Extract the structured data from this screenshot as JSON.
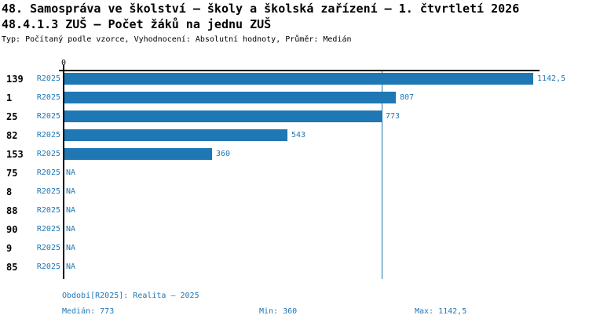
{
  "header": {
    "title_line1": "48. Samospráva ve školství – školy a školská zařízení – 1. čtvrtletí 2026",
    "title_line2": "48.4.1.3 ZUŠ – Počet žáků na jednu ZUŠ",
    "subtitle": "Typ: Počítaný podle vzorce, Vyhodnocení: Absolutní hodnoty, Průměr: Medián"
  },
  "chart_data": {
    "type": "bar",
    "orientation": "horizontal",
    "title": "48.4.1.3 ZUŠ – Počet žáků na jednu ZUŠ",
    "axis_zero_label": "0",
    "series_label": "R2025",
    "categories": [
      "139",
      "1",
      "25",
      "82",
      "153",
      "75",
      "8",
      "88",
      "90",
      "9",
      "85"
    ],
    "values": [
      1142.5,
      807,
      773,
      543,
      360,
      null,
      null,
      null,
      null,
      null,
      null
    ],
    "value_labels": [
      "1142,5",
      "807",
      "773",
      "543",
      "360",
      "NA",
      "NA",
      "NA",
      "NA",
      "NA",
      "NA"
    ],
    "xlim": [
      0,
      1142.5
    ],
    "reference_line_value": 773,
    "bar_color": "#1f77b4",
    "grid": false,
    "legend_position": "none"
  },
  "footer": {
    "period_label": "Období[R2025]: Realita – 2025",
    "median_label": "Medián: 773",
    "min_label": "Min: 360",
    "max_label": "Max: 1142,5"
  },
  "colors": {
    "bar": "#1f77b4",
    "accent_text": "#1f77b4",
    "axis": "#000000",
    "background": "#ffffff"
  }
}
